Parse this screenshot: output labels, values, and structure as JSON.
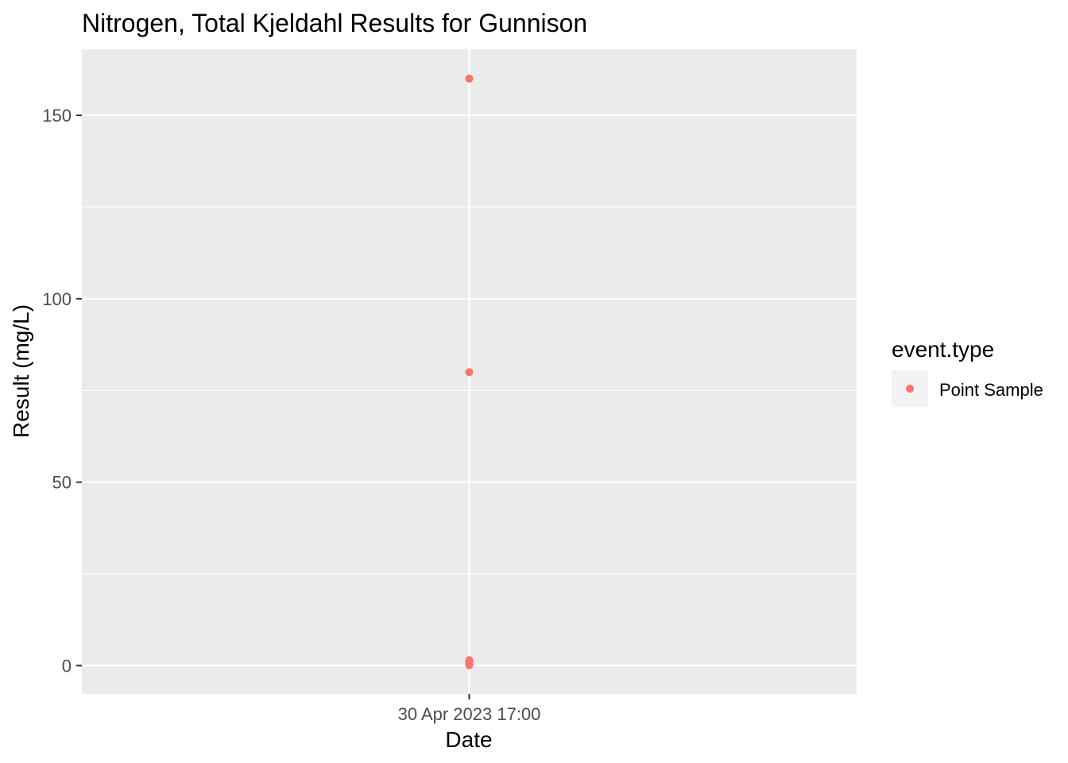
{
  "chart_data": {
    "type": "scatter",
    "title": "Nitrogen, Total Kjeldahl Results for Gunnison",
    "xlabel": "Date",
    "ylabel": "Result (mg/L)",
    "x_ticks": [
      "30 Apr 2023 17:00"
    ],
    "y_ticks": [
      0,
      50,
      100,
      150
    ],
    "ylim": [
      -7.7,
      168
    ],
    "grid": true,
    "legend": {
      "title": "event.type",
      "position": "right",
      "entries": [
        "Point Sample"
      ]
    },
    "series": [
      {
        "name": "Point Sample",
        "color": "#F8766D",
        "x": [
          "30 Apr 2023 17:00",
          "30 Apr 2023 17:00",
          "30 Apr 2023 17:00",
          "30 Apr 2023 17:00",
          "30 Apr 2023 17:00",
          "30 Apr 2023 17:00"
        ],
        "y": [
          160,
          80,
          1.5,
          1.0,
          0.5,
          0.1
        ]
      }
    ]
  },
  "colors": {
    "panel": "#EBEBEB",
    "grid": "#FFFFFF",
    "point": "#F8766D"
  }
}
